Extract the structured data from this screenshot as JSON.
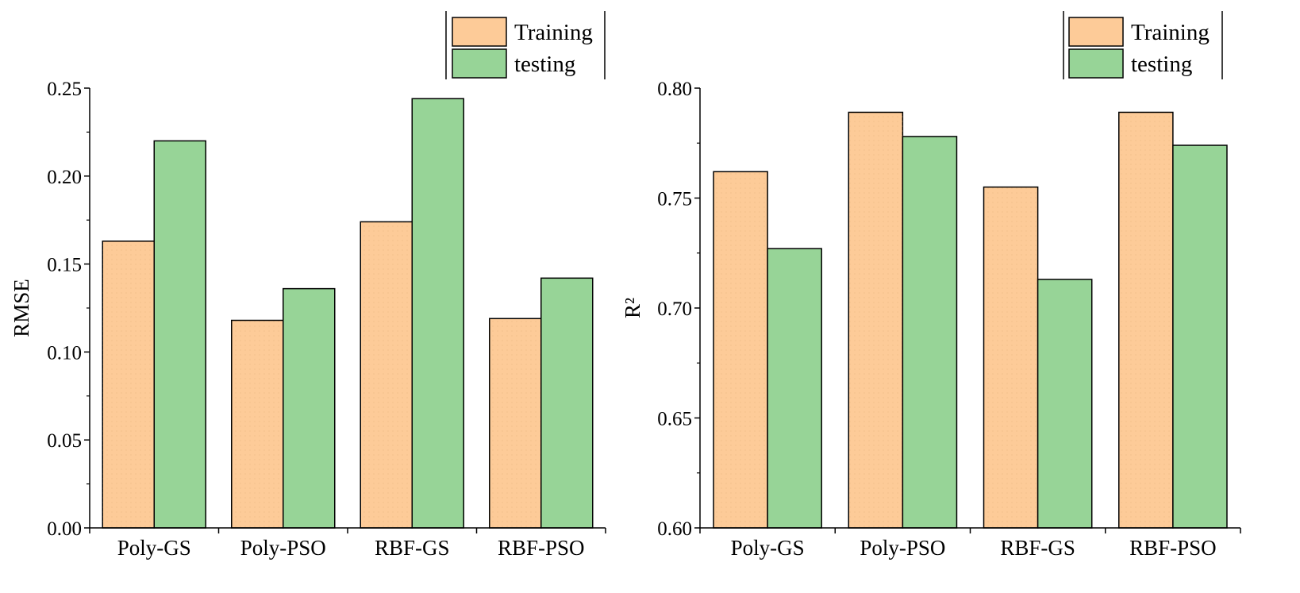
{
  "colors": {
    "training": "#fdcb98",
    "testing": "#97d497",
    "stroke": "#000000"
  },
  "chart_data": [
    {
      "type": "bar",
      "categories": [
        "Poly-GS",
        "Poly-PSO",
        "RBF-GS",
        "RBF-PSO"
      ],
      "series": [
        {
          "name": "Training",
          "values": [
            0.163,
            0.118,
            0.174,
            0.119
          ]
        },
        {
          "name": "testing",
          "values": [
            0.22,
            0.136,
            0.244,
            0.142
          ]
        }
      ],
      "xlabel": "",
      "ylabel": "RMSE",
      "ylim": [
        0.0,
        0.25
      ],
      "ticks": [
        "0.00",
        "0.05",
        "0.10",
        "0.15",
        "0.20",
        "0.25"
      ],
      "legend": {
        "position": "top-right"
      }
    },
    {
      "type": "bar",
      "categories": [
        "Poly-GS",
        "Poly-PSO",
        "RBF-GS",
        "RBF-PSO"
      ],
      "series": [
        {
          "name": "Training",
          "values": [
            0.762,
            0.789,
            0.755,
            0.789
          ]
        },
        {
          "name": "testing",
          "values": [
            0.727,
            0.778,
            0.713,
            0.774
          ]
        }
      ],
      "xlabel": "",
      "ylabel": "R²",
      "ylim": [
        0.6,
        0.8
      ],
      "ticks": [
        "0.60",
        "0.65",
        "0.70",
        "0.75",
        "0.80"
      ],
      "legend": {
        "position": "top-right"
      }
    }
  ]
}
